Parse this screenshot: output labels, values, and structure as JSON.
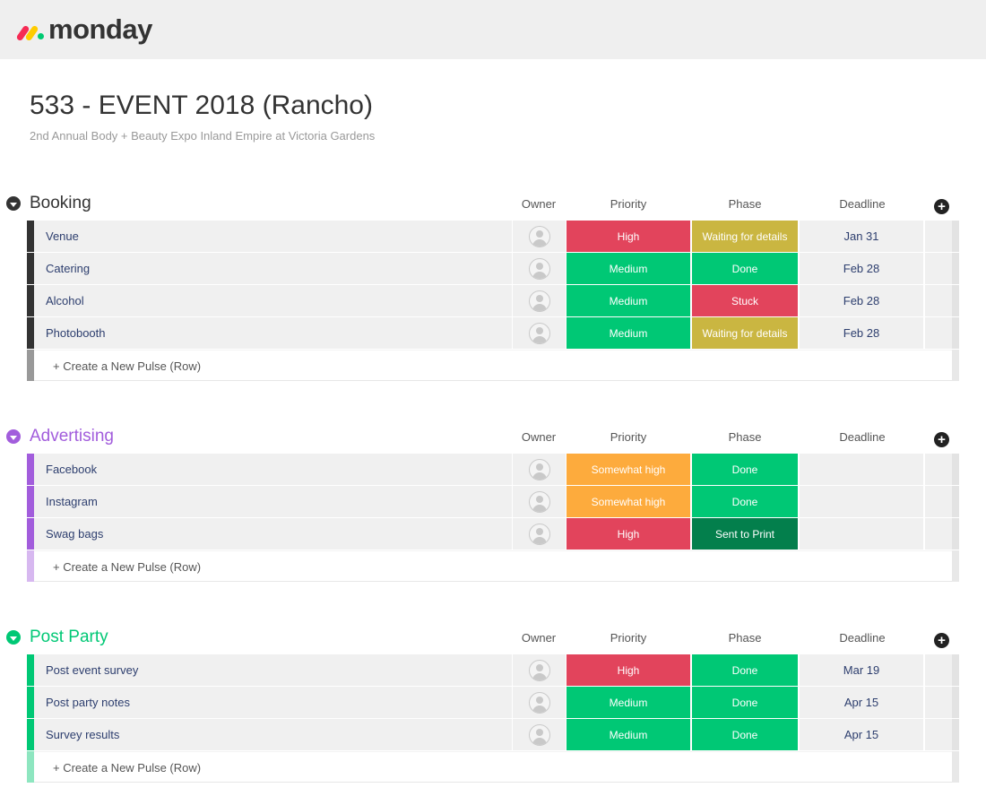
{
  "app": {
    "logo_text": "monday"
  },
  "board": {
    "title": "533 - EVENT 2018 (Rancho)",
    "description": "2nd Annual Body + Beauty Expo Inland Empire at Victoria Gardens"
  },
  "colors": {
    "high": "#e2445c",
    "medium": "#00c875",
    "somewhat_high": "#fdab3d",
    "waiting": "#cab641",
    "done": "#00c875",
    "stuck": "#e2445c",
    "sent_to_print": "#037f4c",
    "booking_group": "#333333",
    "advertising_group": "#a25ddc",
    "post_party_group": "#00c875"
  },
  "groups": [
    {
      "name": "Booking",
      "color": "#333333",
      "new_row_color": "#999999",
      "columns": {
        "owner": "Owner",
        "priority": "Priority",
        "phase": "Phase",
        "deadline": "Deadline"
      },
      "rows": [
        {
          "name": "Venue",
          "priority": "High",
          "priority_color": "#e2445c",
          "phase": "Waiting for details",
          "phase_color": "#cab641",
          "deadline": "Jan 31"
        },
        {
          "name": "Catering",
          "priority": "Medium",
          "priority_color": "#00c875",
          "phase": "Done",
          "phase_color": "#00c875",
          "deadline": "Feb 28"
        },
        {
          "name": "Alcohol",
          "priority": "Medium",
          "priority_color": "#00c875",
          "phase": "Stuck",
          "phase_color": "#e2445c",
          "deadline": "Feb 28"
        },
        {
          "name": "Photobooth",
          "priority": "Medium",
          "priority_color": "#00c875",
          "phase": "Waiting for details",
          "phase_color": "#cab641",
          "deadline": "Feb 28"
        }
      ],
      "new_row_label": "+ Create a New Pulse (Row)"
    },
    {
      "name": "Advertising",
      "color": "#a25ddc",
      "new_row_color": "#d7b8f0",
      "columns": {
        "owner": "Owner",
        "priority": "Priority",
        "phase": "Phase",
        "deadline": "Deadline"
      },
      "rows": [
        {
          "name": "Facebook",
          "priority": "Somewhat high",
          "priority_color": "#fdab3d",
          "phase": "Done",
          "phase_color": "#00c875",
          "deadline": ""
        },
        {
          "name": "Instagram",
          "priority": "Somewhat high",
          "priority_color": "#fdab3d",
          "phase": "Done",
          "phase_color": "#00c875",
          "deadline": ""
        },
        {
          "name": "Swag bags",
          "priority": "High",
          "priority_color": "#e2445c",
          "phase": "Sent to Print",
          "phase_color": "#037f4c",
          "deadline": ""
        }
      ],
      "new_row_label": "+ Create a New Pulse (Row)"
    },
    {
      "name": "Post Party",
      "color": "#00c875",
      "new_row_color": "#8ee6c0",
      "columns": {
        "owner": "Owner",
        "priority": "Priority",
        "phase": "Phase",
        "deadline": "Deadline"
      },
      "rows": [
        {
          "name": "Post event survey",
          "priority": "High",
          "priority_color": "#e2445c",
          "phase": "Done",
          "phase_color": "#00c875",
          "deadline": "Mar 19"
        },
        {
          "name": "Post party notes",
          "priority": "Medium",
          "priority_color": "#00c875",
          "phase": "Done",
          "phase_color": "#00c875",
          "deadline": "Apr 15"
        },
        {
          "name": "Survey results",
          "priority": "Medium",
          "priority_color": "#00c875",
          "phase": "Done",
          "phase_color": "#00c875",
          "deadline": "Apr 15"
        }
      ],
      "new_row_label": "+ Create a New Pulse (Row)"
    }
  ]
}
